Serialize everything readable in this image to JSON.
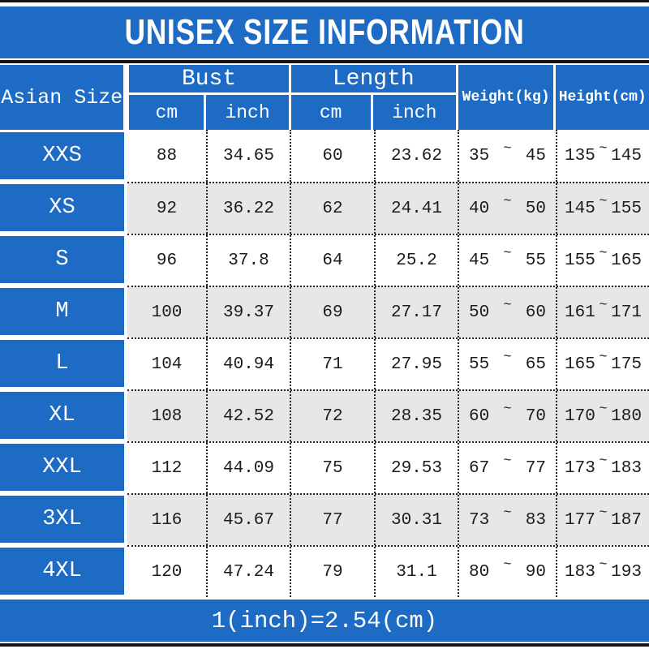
{
  "title": "UNISEX SIZE INFORMATION",
  "footer": "1(inch)=2.54(cm)",
  "colors": {
    "primary_blue": "#1d6bc4",
    "row_alt_gray": "#e7e7e7",
    "text_dark": "#1c1c1c",
    "border_dark": "#141414"
  },
  "table": {
    "headers": {
      "asian_size": "Asian Size",
      "bust": "Bust",
      "length": "Length",
      "cm": "cm",
      "inch": "inch",
      "weight": "Weight(kg)",
      "height": "Height(cm)"
    },
    "range_separator": "~",
    "rows": [
      {
        "size": "XXS",
        "bust_cm": "88",
        "bust_inch": "34.65",
        "length_cm": "60",
        "length_inch": "23.62",
        "weight_min": "35",
        "weight_max": "45",
        "height_min": "135",
        "height_max": "145"
      },
      {
        "size": "XS",
        "bust_cm": "92",
        "bust_inch": "36.22",
        "length_cm": "62",
        "length_inch": "24.41",
        "weight_min": "40",
        "weight_max": "50",
        "height_min": "145",
        "height_max": "155"
      },
      {
        "size": "S",
        "bust_cm": "96",
        "bust_inch": "37.8",
        "length_cm": "64",
        "length_inch": "25.2",
        "weight_min": "45",
        "weight_max": "55",
        "height_min": "155",
        "height_max": "165"
      },
      {
        "size": "M",
        "bust_cm": "100",
        "bust_inch": "39.37",
        "length_cm": "69",
        "length_inch": "27.17",
        "weight_min": "50",
        "weight_max": "60",
        "height_min": "161",
        "height_max": "171"
      },
      {
        "size": "L",
        "bust_cm": "104",
        "bust_inch": "40.94",
        "length_cm": "71",
        "length_inch": "27.95",
        "weight_min": "55",
        "weight_max": "65",
        "height_min": "165",
        "height_max": "175"
      },
      {
        "size": "XL",
        "bust_cm": "108",
        "bust_inch": "42.52",
        "length_cm": "72",
        "length_inch": "28.35",
        "weight_min": "60",
        "weight_max": "70",
        "height_min": "170",
        "height_max": "180"
      },
      {
        "size": "XXL",
        "bust_cm": "112",
        "bust_inch": "44.09",
        "length_cm": "75",
        "length_inch": "29.53",
        "weight_min": "67",
        "weight_max": "77",
        "height_min": "173",
        "height_max": "183"
      },
      {
        "size": "3XL",
        "bust_cm": "116",
        "bust_inch": "45.67",
        "length_cm": "77",
        "length_inch": "30.31",
        "weight_min": "73",
        "weight_max": "83",
        "height_min": "177",
        "height_max": "187"
      },
      {
        "size": "4XL",
        "bust_cm": "120",
        "bust_inch": "47.24",
        "length_cm": "79",
        "length_inch": "31.1",
        "weight_min": "80",
        "weight_max": "90",
        "height_min": "183",
        "height_max": "193"
      }
    ]
  }
}
